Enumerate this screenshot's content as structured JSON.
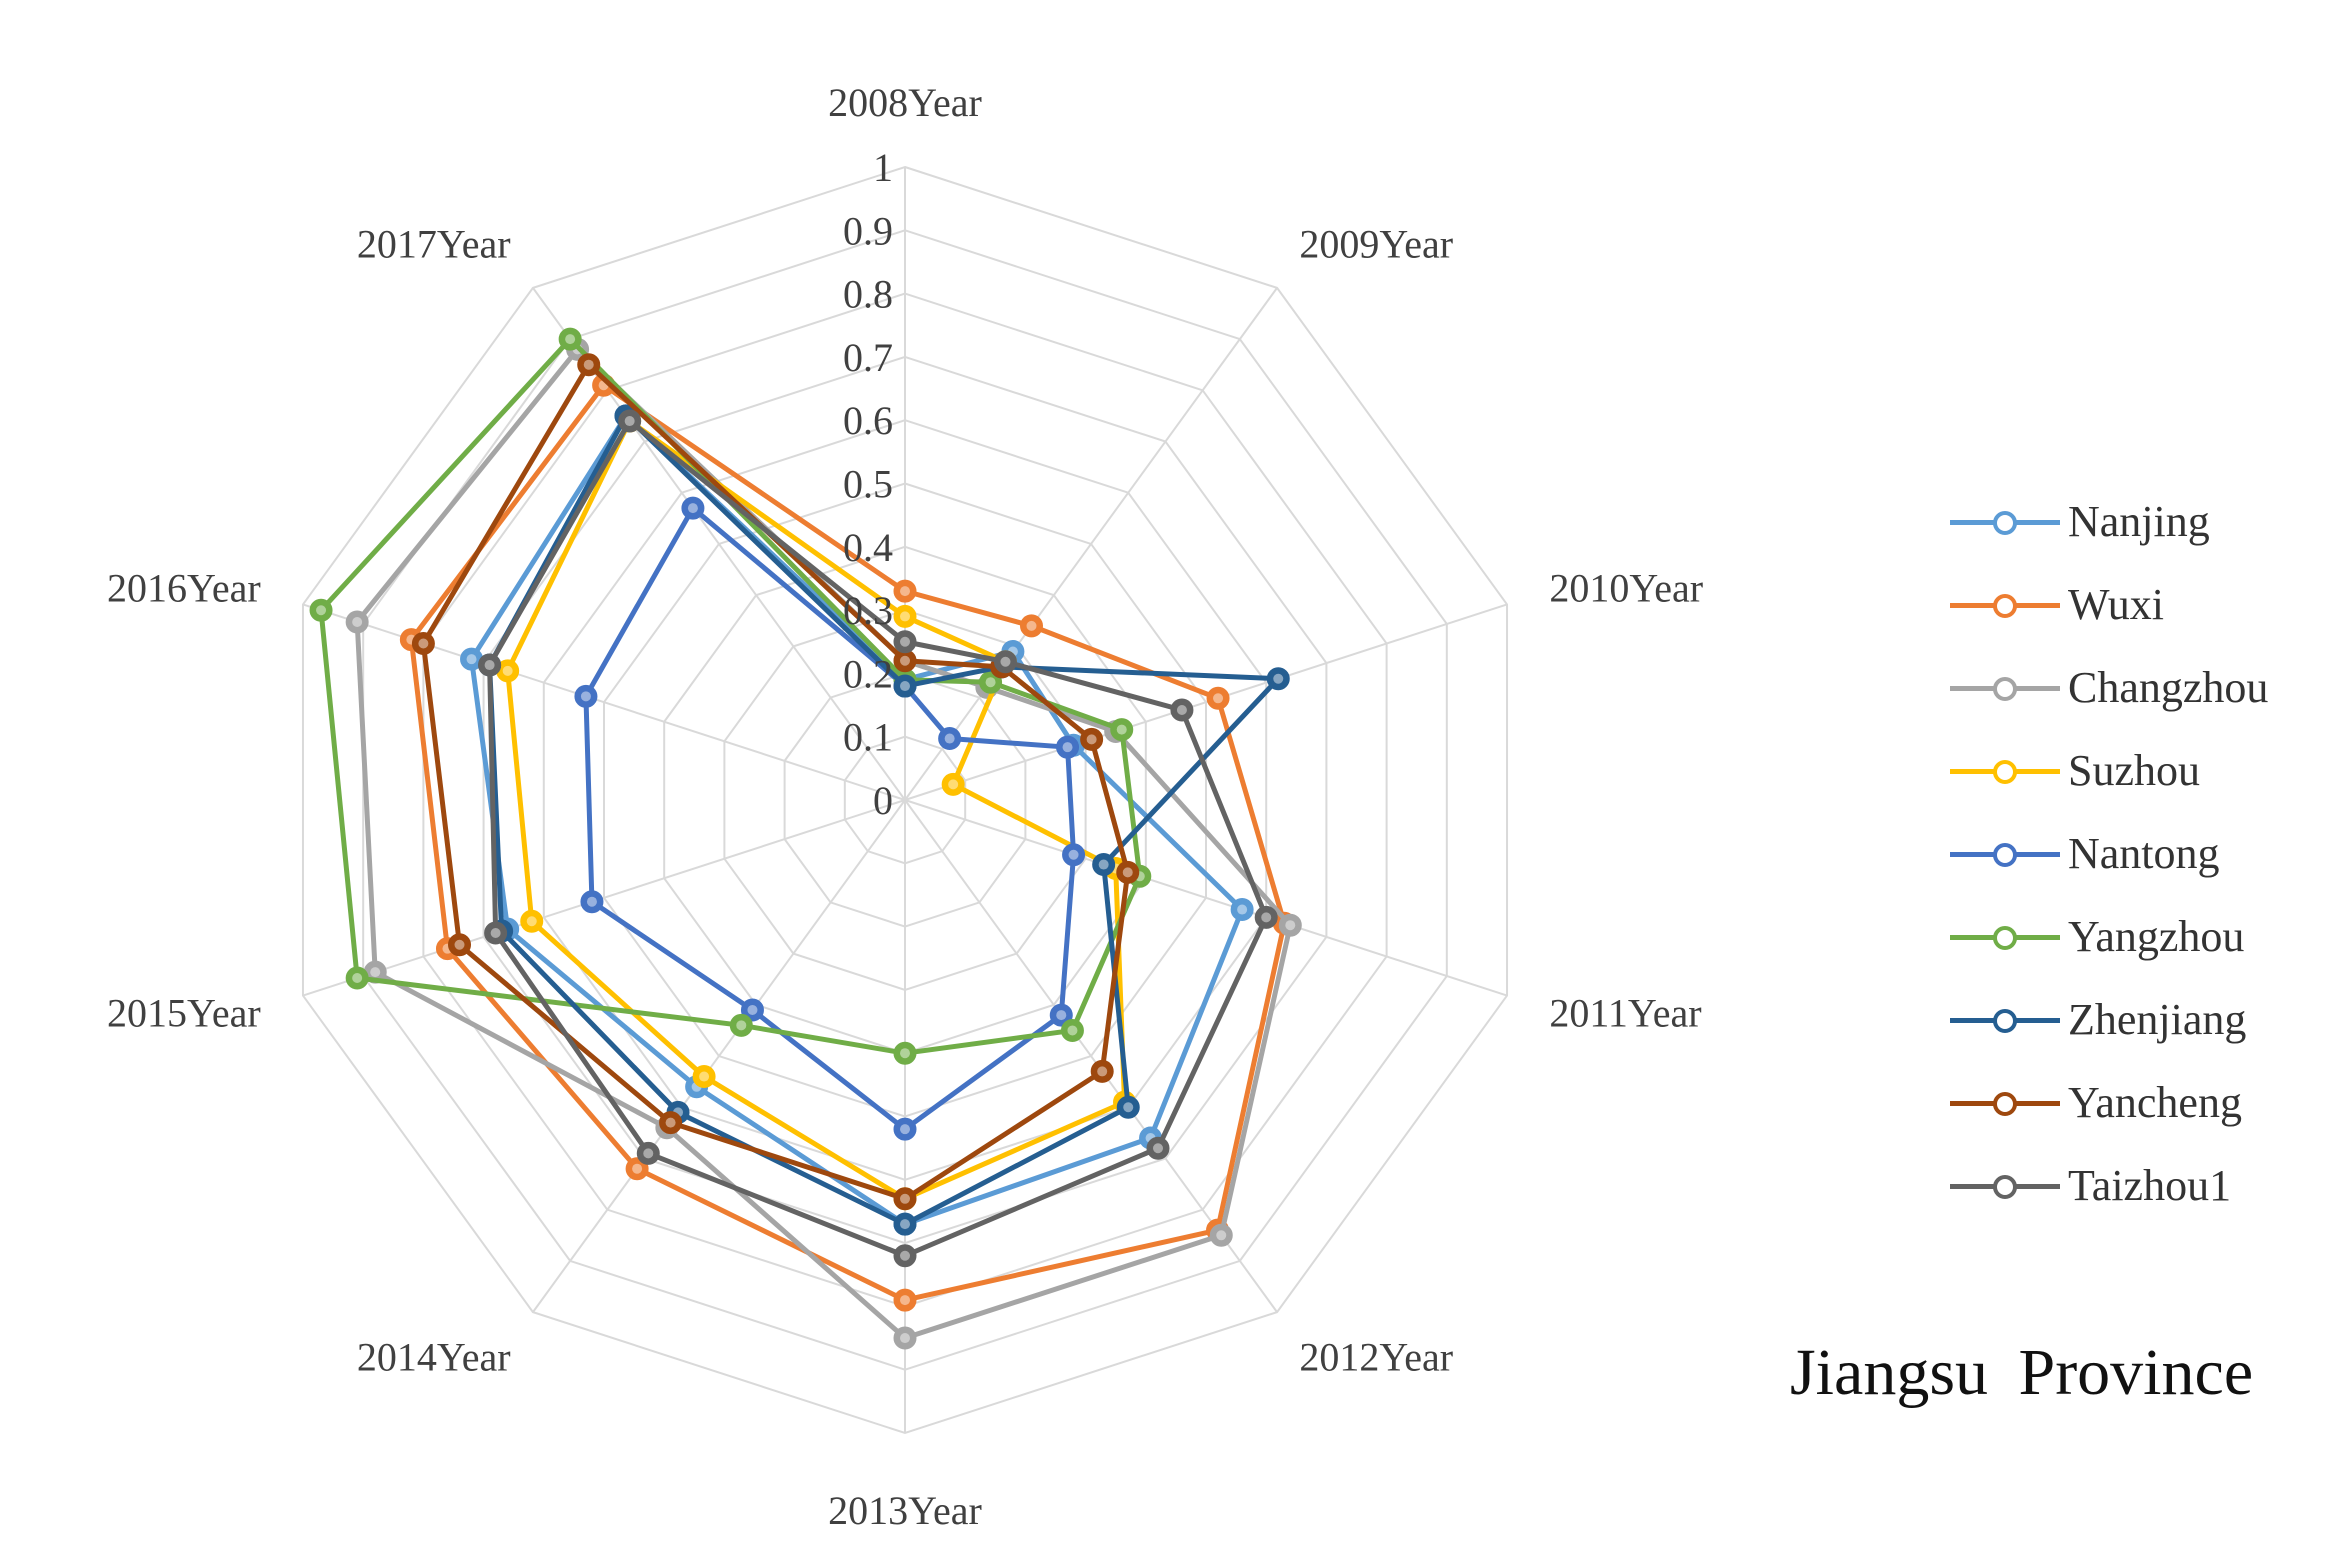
{
  "chart_data": {
    "type": "radar",
    "title": "Jiangsu Province",
    "axes": [
      "2008Year",
      "2009Year",
      "2010Year",
      "2011Year",
      "2012Year",
      "2013Year",
      "2014Year",
      "2015Year",
      "2016Year",
      "2017Year"
    ],
    "rlim": [
      0,
      1
    ],
    "ticks": [
      "0",
      "0.1",
      "0.2",
      "0.3",
      "0.4",
      "0.5",
      "0.6",
      "0.7",
      "0.8",
      "0.9",
      "1"
    ],
    "series": [
      {
        "name": "Nanjing",
        "color": "#5b9bd5",
        "values": [
          0.19,
          0.29,
          0.28,
          0.56,
          0.66,
          0.67,
          0.56,
          0.66,
          0.72,
          0.75
        ]
      },
      {
        "name": "Wuxi",
        "color": "#ed7d31",
        "values": [
          0.33,
          0.34,
          0.52,
          0.63,
          0.84,
          0.79,
          0.72,
          0.76,
          0.82,
          0.81
        ]
      },
      {
        "name": "Changzhou",
        "color": "#a5a5a5",
        "values": [
          0.22,
          0.22,
          0.35,
          0.64,
          0.85,
          0.85,
          0.64,
          0.88,
          0.91,
          0.88
        ]
      },
      {
        "name": "Suzhou",
        "color": "#ffc000",
        "values": [
          0.29,
          0.27,
          0.08,
          0.35,
          0.59,
          0.63,
          0.54,
          0.62,
          0.66,
          0.74
        ]
      },
      {
        "name": "Nantong",
        "color": "#4472c4",
        "values": [
          0.18,
          0.12,
          0.27,
          0.28,
          0.42,
          0.52,
          0.41,
          0.52,
          0.53,
          0.57
        ]
      },
      {
        "name": "Yangzhou",
        "color": "#70ad47",
        "values": [
          0.19,
          0.23,
          0.36,
          0.39,
          0.45,
          0.4,
          0.44,
          0.91,
          0.97,
          0.9
        ]
      },
      {
        "name": "Zhenjiang",
        "color": "#255e91",
        "values": [
          0.18,
          0.26,
          0.62,
          0.33,
          0.6,
          0.67,
          0.61,
          0.67,
          0.69,
          0.75
        ]
      },
      {
        "name": "Yancheng",
        "color": "#9e480e",
        "values": [
          0.22,
          0.26,
          0.31,
          0.37,
          0.53,
          0.63,
          0.63,
          0.74,
          0.8,
          0.85
        ]
      },
      {
        "name": "Taizhou1",
        "color": "#636363",
        "values": [
          0.25,
          0.27,
          0.46,
          0.6,
          0.68,
          0.72,
          0.69,
          0.68,
          0.69,
          0.74
        ]
      }
    ]
  }
}
